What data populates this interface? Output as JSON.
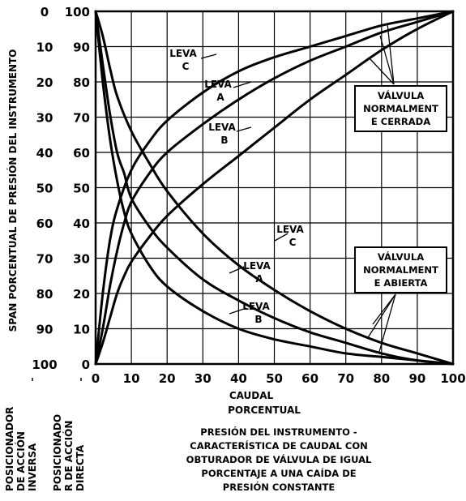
{
  "chart_data": {
    "type": "line",
    "title_lines": [
      "PRESIÓN DEL INSTRUMENTO -",
      "CARACTERÍSTICA DE CAUDAL CON",
      "OBTURADOR DE VÁLVULA DE IGUAL",
      "PORCENTAJE A UNA CAÍDA DE",
      "PRESIÓN CONSTANTE"
    ],
    "xlabel_lines": [
      "CAUDAL",
      "PORCENTUAL"
    ],
    "ylabel": "SPAN PORCENTUAL DE PRESIÓN DEL INSTRUMENTO",
    "x_ticks": [
      "0",
      "10",
      "20",
      "30",
      "40",
      "50",
      "60",
      "70",
      "80",
      "90",
      "100"
    ],
    "y_ticks_direct": [
      "0",
      "10",
      "20",
      "30",
      "40",
      "50",
      "60",
      "70",
      "80",
      "90",
      "100"
    ],
    "y_ticks_inverse": [
      "100",
      "90",
      "80",
      "70",
      "60",
      "50",
      "40",
      "30",
      "20",
      "10",
      "0"
    ],
    "positioner_labels": {
      "inverse_lines": [
        "POSICIONADOR",
        "DE ACCIÓN",
        "INVERSA"
      ],
      "direct_lines": [
        "POSICIONADO",
        "R DE ACCIÓN",
        "DIRECTA"
      ]
    },
    "xlim": [
      0,
      100
    ],
    "ylim": [
      0,
      100
    ],
    "grid": true,
    "groups": [
      {
        "box_lines": [
          "VÁLVULA",
          "NORMALMENT",
          "E CERRADA"
        ],
        "series": [
          {
            "label_lines": [
              "LEVA",
              "C"
            ],
            "x": [
              0,
              2,
              4,
              6,
              10,
              15,
              20,
              30,
              40,
              50,
              60,
              70,
              80,
              90,
              100
            ],
            "y": [
              0,
              20,
              35,
              44,
              55,
              63,
              69,
              77,
              83,
              87,
              90,
              93,
              96,
              98,
              100
            ]
          },
          {
            "label_lines": [
              "LEVA",
              "A"
            ],
            "x": [
              0,
              2,
              4,
              6,
              8,
              10,
              15,
              20,
              30,
              40,
              50,
              60,
              70,
              80,
              90,
              100
            ],
            "y": [
              0,
              10,
              22,
              32,
              40,
              46,
              54,
              60,
              68,
              75,
              81,
              86,
              90,
              94,
              97,
              100
            ]
          },
          {
            "label_lines": [
              "LEVA",
              "B"
            ],
            "x": [
              0,
              2,
              4,
              6,
              8,
              10,
              15,
              20,
              30,
              40,
              50,
              60,
              70,
              80,
              90,
              100
            ],
            "y": [
              0,
              6,
              13,
              20,
              25,
              29,
              36,
              42,
              51,
              59,
              67,
              75,
              82,
              89,
              95,
              100
            ]
          }
        ]
      },
      {
        "box_lines": [
          "VÁLVULA",
          "NORMALMENT",
          "E ABIERTA"
        ],
        "series": [
          {
            "label_lines": [
              "LEVA",
              "C"
            ],
            "x": [
              0,
              2,
              4,
              6,
              10,
              15,
              20,
              30,
              40,
              50,
              60,
              70,
              80,
              90,
              100
            ],
            "y": [
              100,
              93,
              84,
              76,
              66,
              57,
              49,
              37,
              28,
              21,
              15,
              10,
              6,
              3,
              0
            ]
          },
          {
            "label_lines": [
              "LEVA",
              "A"
            ],
            "x": [
              0,
              2,
              4,
              6,
              8,
              10,
              15,
              20,
              30,
              40,
              50,
              60,
              70,
              80,
              90,
              100
            ],
            "y": [
              100,
              85,
              71,
              60,
              54,
              47,
              39,
              33,
              24,
              18,
              13,
              9,
              6,
              3,
              1,
              0
            ]
          },
          {
            "label_lines": [
              "LEVA",
              "B"
            ],
            "x": [
              0,
              2,
              4,
              6,
              8,
              10,
              15,
              20,
              30,
              40,
              50,
              60,
              70,
              80,
              90,
              100
            ],
            "y": [
              100,
              80,
              64,
              52,
              43,
              37,
              28,
              22,
              15,
              10,
              7,
              5,
              3,
              2,
              1,
              0
            ]
          }
        ]
      }
    ]
  }
}
